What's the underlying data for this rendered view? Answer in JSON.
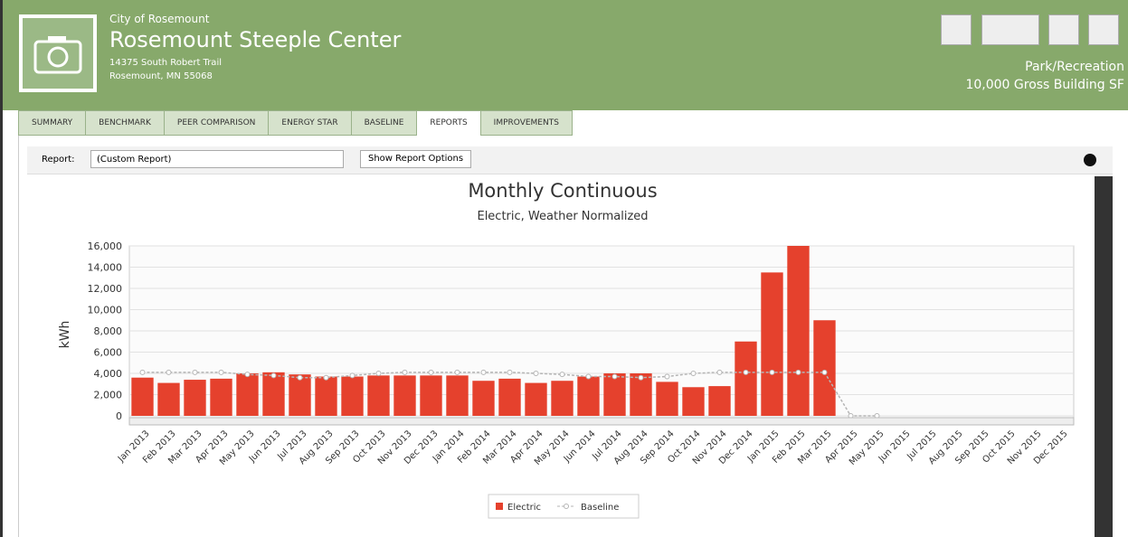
{
  "header": {
    "org": "City of Rosemount",
    "title": "Rosemount Steeple Center",
    "address1": "14375 South Robert Trail",
    "address2": "Rosemount, MN 55068",
    "type": "Park/Recreation",
    "area": "10,000 Gross Building SF"
  },
  "tabs": [
    "SUMMARY",
    "BENCHMARK",
    "PEER COMPARISON",
    "ENERGY STAR",
    "BASELINE",
    "REPORTS",
    "IMPROVEMENTS"
  ],
  "active_tab": 5,
  "toolbar": {
    "report_label": "Report:",
    "report_value": "(Custom Report)",
    "options_button": "Show Report Options"
  },
  "chart_data": {
    "type": "bar",
    "title": "Monthly Continuous",
    "subtitle": "Electric, Weather Normalized",
    "y_label": "kWh",
    "categories": [
      "Jan 2013",
      "Feb 2013",
      "Mar 2013",
      "Apr 2013",
      "May 2013",
      "Jun 2013",
      "Jul 2013",
      "Aug 2013",
      "Sep 2013",
      "Oct 2013",
      "Nov 2013",
      "Dec 2013",
      "Jan 2014",
      "Feb 2014",
      "Mar 2014",
      "Apr 2014",
      "May 2014",
      "Jun 2014",
      "Jul 2014",
      "Aug 2014",
      "Sep 2014",
      "Oct 2014",
      "Nov 2014",
      "Dec 2014",
      "Jan 2015",
      "Feb 2015",
      "Mar 2015",
      "Apr 2015",
      "May 2015",
      "Jun 2015",
      "Jul 2015",
      "Aug 2015",
      "Sep 2015",
      "Oct 2015",
      "Nov 2015",
      "Dec 2015"
    ],
    "series": [
      {
        "name": "Electric",
        "type": "bar",
        "color": "#e5412d",
        "values": [
          3600,
          3100,
          3400,
          3500,
          4000,
          4100,
          3900,
          3700,
          3700,
          3800,
          3800,
          3800,
          3800,
          3300,
          3500,
          3100,
          3300,
          3700,
          4000,
          4000,
          3200,
          2700,
          2800,
          7000,
          13500,
          16000,
          9000,
          null,
          null,
          null,
          null,
          null,
          null,
          null,
          null,
          null
        ]
      },
      {
        "name": "Baseline",
        "type": "line",
        "color": "#b5b5b5",
        "values": [
          4100,
          4100,
          4100,
          4100,
          3900,
          3800,
          3600,
          3600,
          3800,
          4000,
          4100,
          4100,
          4100,
          4100,
          4100,
          4000,
          3900,
          3700,
          3700,
          3600,
          3700,
          4000,
          4100,
          4100,
          4100,
          4100,
          4100,
          0,
          0,
          null,
          null,
          null,
          null,
          null,
          null,
          null
        ]
      }
    ],
    "ylim": [
      0,
      16000
    ],
    "yticks": [
      {
        "value": 0,
        "label": "0"
      },
      {
        "value": 2000,
        "label": "2,000"
      },
      {
        "value": 4000,
        "label": "4,000"
      },
      {
        "value": 6000,
        "label": "6,000"
      },
      {
        "value": 8000,
        "label": "8,000"
      },
      {
        "value": 10000,
        "label": "10,000"
      },
      {
        "value": 12000,
        "label": "12,000"
      },
      {
        "value": 14000,
        "label": "14,000"
      },
      {
        "value": 16000,
        "label": "16,000"
      }
    ],
    "grid": true
  }
}
